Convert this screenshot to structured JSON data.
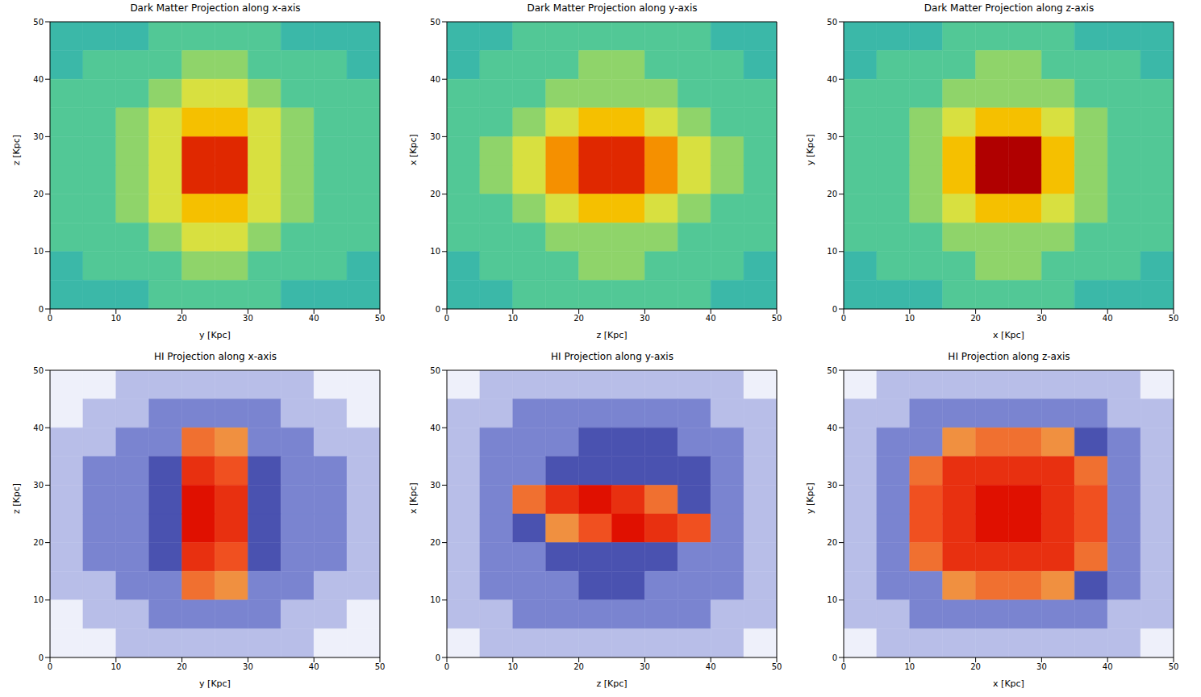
{
  "chart_data": [
    {
      "type": "heatmap",
      "title": "Dark Matter Projection along x-axis",
      "x_label": "y [Kpc]",
      "y_label": "z [Kpc]",
      "xlim": [
        0,
        50
      ],
      "ylim": [
        0,
        50
      ],
      "xticks": [
        0,
        10,
        20,
        30,
        40,
        50
      ],
      "yticks": [
        0,
        10,
        20,
        30,
        40,
        50
      ],
      "colors": [
        "#2a9fb8",
        "#3bb8a8",
        "#52c896",
        "#8fd46a",
        "#d8e040",
        "#f5c000",
        "#f59000",
        "#f06000",
        "#e02800",
        "#b00000"
      ],
      "cells": [
        [
          1,
          1,
          1,
          2,
          2,
          2,
          2,
          1,
          1,
          1
        ],
        [
          1,
          2,
          2,
          2,
          3,
          3,
          2,
          2,
          2,
          1
        ],
        [
          2,
          2,
          2,
          3,
          4,
          4,
          3,
          2,
          2,
          2
        ],
        [
          2,
          2,
          3,
          4,
          5,
          5,
          4,
          3,
          2,
          2
        ],
        [
          2,
          2,
          3,
          4,
          8,
          8,
          4,
          3,
          2,
          2
        ],
        [
          2,
          2,
          3,
          4,
          8,
          8,
          4,
          3,
          2,
          2
        ],
        [
          2,
          2,
          3,
          4,
          5,
          5,
          4,
          3,
          2,
          2
        ],
        [
          2,
          2,
          2,
          3,
          4,
          4,
          3,
          2,
          2,
          2
        ],
        [
          1,
          2,
          2,
          2,
          3,
          3,
          2,
          2,
          2,
          1
        ],
        [
          1,
          1,
          1,
          2,
          2,
          2,
          2,
          1,
          1,
          1
        ]
      ]
    },
    {
      "type": "heatmap",
      "title": "Dark Matter Projection along y-axis",
      "x_label": "z [Kpc]",
      "y_label": "x [Kpc]",
      "xlim": [
        0,
        50
      ],
      "ylim": [
        0,
        50
      ],
      "xticks": [
        0,
        10,
        20,
        30,
        40,
        50
      ],
      "yticks": [
        0,
        10,
        20,
        30,
        40,
        50
      ],
      "colors": [
        "#2a9fb8",
        "#3bb8a8",
        "#52c896",
        "#8fd46a",
        "#d8e040",
        "#f5c000",
        "#f59000",
        "#f06000",
        "#e02800",
        "#b00000"
      ],
      "cells": [
        [
          1,
          1,
          2,
          2,
          2,
          2,
          2,
          2,
          1,
          1
        ],
        [
          1,
          2,
          2,
          2,
          3,
          3,
          2,
          2,
          2,
          1
        ],
        [
          2,
          2,
          2,
          3,
          3,
          3,
          3,
          2,
          2,
          2
        ],
        [
          2,
          2,
          3,
          4,
          5,
          5,
          4,
          3,
          2,
          2
        ],
        [
          2,
          3,
          4,
          6,
          8,
          8,
          6,
          4,
          3,
          2
        ],
        [
          2,
          3,
          4,
          6,
          8,
          8,
          6,
          4,
          3,
          2
        ],
        [
          2,
          2,
          3,
          4,
          5,
          5,
          4,
          3,
          2,
          2
        ],
        [
          2,
          2,
          2,
          3,
          3,
          3,
          3,
          2,
          2,
          2
        ],
        [
          1,
          2,
          2,
          2,
          3,
          3,
          2,
          2,
          2,
          1
        ],
        [
          1,
          1,
          2,
          2,
          2,
          2,
          2,
          2,
          1,
          1
        ]
      ]
    },
    {
      "type": "heatmap",
      "title": "Dark Matter Projection along z-axis",
      "x_label": "x [Kpc]",
      "y_label": "y [Kpc]",
      "xlim": [
        0,
        50
      ],
      "ylim": [
        0,
        50
      ],
      "xticks": [
        0,
        10,
        20,
        30,
        40,
        50
      ],
      "yticks": [
        0,
        10,
        20,
        30,
        40,
        50
      ],
      "colors": [
        "#2a9fb8",
        "#3bb8a8",
        "#52c896",
        "#8fd46a",
        "#d8e040",
        "#f5c000",
        "#f59000",
        "#f06000",
        "#e02800",
        "#b00000"
      ],
      "cells": [
        [
          1,
          1,
          1,
          2,
          2,
          2,
          2,
          1,
          1,
          1
        ],
        [
          1,
          2,
          2,
          2,
          3,
          3,
          2,
          2,
          2,
          1
        ],
        [
          2,
          2,
          2,
          3,
          3,
          3,
          3,
          2,
          2,
          2
        ],
        [
          2,
          2,
          3,
          4,
          5,
          5,
          4,
          3,
          2,
          2
        ],
        [
          2,
          2,
          3,
          5,
          9,
          9,
          5,
          3,
          2,
          2
        ],
        [
          2,
          2,
          3,
          5,
          9,
          9,
          5,
          3,
          2,
          2
        ],
        [
          2,
          2,
          3,
          4,
          5,
          5,
          4,
          3,
          2,
          2
        ],
        [
          2,
          2,
          2,
          3,
          3,
          3,
          3,
          2,
          2,
          2
        ],
        [
          1,
          2,
          2,
          2,
          3,
          3,
          2,
          2,
          2,
          1
        ],
        [
          1,
          1,
          1,
          2,
          2,
          2,
          2,
          1,
          1,
          1
        ]
      ]
    },
    {
      "type": "heatmap",
      "title": "HI Projection along x-axis",
      "x_label": "y [Kpc]",
      "y_label": "z [Kpc]",
      "xlim": [
        0,
        50
      ],
      "ylim": [
        0,
        50
      ],
      "xticks": [
        0,
        10,
        20,
        30,
        40,
        50
      ],
      "yticks": [
        0,
        10,
        20,
        30,
        40,
        50
      ],
      "colors": [
        "#eef0fa",
        "#b8bee8",
        "#7a84d0",
        "#4a52b0",
        "#f0b060",
        "#f09040",
        "#f07030",
        "#f05020",
        "#e83010",
        "#e01000"
      ],
      "cells": [
        [
          0,
          0,
          1,
          1,
          1,
          1,
          1,
          1,
          0,
          0
        ],
        [
          0,
          1,
          1,
          2,
          2,
          2,
          2,
          1,
          1,
          0
        ],
        [
          1,
          1,
          2,
          2,
          6,
          5,
          2,
          2,
          1,
          1
        ],
        [
          1,
          2,
          2,
          3,
          8,
          7,
          3,
          2,
          2,
          1
        ],
        [
          1,
          2,
          2,
          3,
          9,
          8,
          3,
          2,
          2,
          1
        ],
        [
          1,
          2,
          2,
          3,
          9,
          8,
          3,
          2,
          2,
          1
        ],
        [
          1,
          2,
          2,
          3,
          8,
          7,
          3,
          2,
          2,
          1
        ],
        [
          1,
          1,
          2,
          2,
          6,
          5,
          2,
          2,
          1,
          1
        ],
        [
          0,
          1,
          1,
          2,
          2,
          2,
          2,
          1,
          1,
          0
        ],
        [
          0,
          0,
          1,
          1,
          1,
          1,
          1,
          1,
          0,
          0
        ]
      ]
    },
    {
      "type": "heatmap",
      "title": "HI Projection along y-axis",
      "x_label": "z [Kpc]",
      "y_label": "x [Kpc]",
      "xlim": [
        0,
        50
      ],
      "ylim": [
        0,
        50
      ],
      "xticks": [
        0,
        10,
        20,
        30,
        40,
        50
      ],
      "yticks": [
        0,
        10,
        20,
        30,
        40,
        50
      ],
      "colors": [
        "#eef0fa",
        "#b8bee8",
        "#7a84d0",
        "#4a52b0",
        "#f0b060",
        "#f09040",
        "#f07030",
        "#f05020",
        "#e83010",
        "#e01000"
      ],
      "cells": [
        [
          0,
          1,
          1,
          1,
          1,
          1,
          1,
          1,
          1,
          0
        ],
        [
          1,
          1,
          2,
          2,
          2,
          2,
          2,
          2,
          1,
          1
        ],
        [
          1,
          2,
          2,
          2,
          3,
          3,
          3,
          2,
          2,
          1
        ],
        [
          1,
          2,
          2,
          3,
          3,
          3,
          3,
          3,
          2,
          1
        ],
        [
          1,
          2,
          6,
          8,
          9,
          8,
          6,
          3,
          2,
          1
        ],
        [
          1,
          2,
          3,
          5,
          7,
          9,
          8,
          7,
          2,
          1
        ],
        [
          1,
          2,
          2,
          3,
          3,
          3,
          3,
          2,
          2,
          1
        ],
        [
          1,
          2,
          2,
          2,
          3,
          3,
          2,
          2,
          2,
          1
        ],
        [
          1,
          1,
          2,
          2,
          2,
          2,
          2,
          2,
          1,
          1
        ],
        [
          0,
          1,
          1,
          1,
          1,
          1,
          1,
          1,
          1,
          0
        ]
      ]
    },
    {
      "type": "heatmap",
      "title": "HI Projection along z-axis",
      "x_label": "x [Kpc]",
      "y_label": "y [Kpc]",
      "xlim": [
        0,
        50
      ],
      "ylim": [
        0,
        50
      ],
      "xticks": [
        0,
        10,
        20,
        30,
        40,
        50
      ],
      "yticks": [
        0,
        10,
        20,
        30,
        40,
        50
      ],
      "colors": [
        "#eef0fa",
        "#b8bee8",
        "#7a84d0",
        "#4a52b0",
        "#f0b060",
        "#f09040",
        "#f07030",
        "#f05020",
        "#e83010",
        "#e01000"
      ],
      "cells": [
        [
          0,
          1,
          1,
          1,
          1,
          1,
          1,
          1,
          1,
          0
        ],
        [
          1,
          1,
          2,
          2,
          2,
          2,
          2,
          2,
          1,
          1
        ],
        [
          1,
          2,
          2,
          5,
          6,
          6,
          5,
          3,
          2,
          1
        ],
        [
          1,
          2,
          6,
          8,
          8,
          8,
          8,
          6,
          2,
          1
        ],
        [
          1,
          2,
          7,
          8,
          9,
          9,
          8,
          7,
          2,
          1
        ],
        [
          1,
          2,
          7,
          8,
          9,
          9,
          8,
          7,
          2,
          1
        ],
        [
          1,
          2,
          6,
          8,
          8,
          8,
          8,
          6,
          2,
          1
        ],
        [
          1,
          2,
          2,
          5,
          6,
          6,
          5,
          3,
          2,
          1
        ],
        [
          1,
          1,
          2,
          2,
          2,
          2,
          2,
          2,
          1,
          1
        ],
        [
          0,
          1,
          1,
          1,
          1,
          1,
          1,
          1,
          1,
          0
        ]
      ]
    }
  ]
}
